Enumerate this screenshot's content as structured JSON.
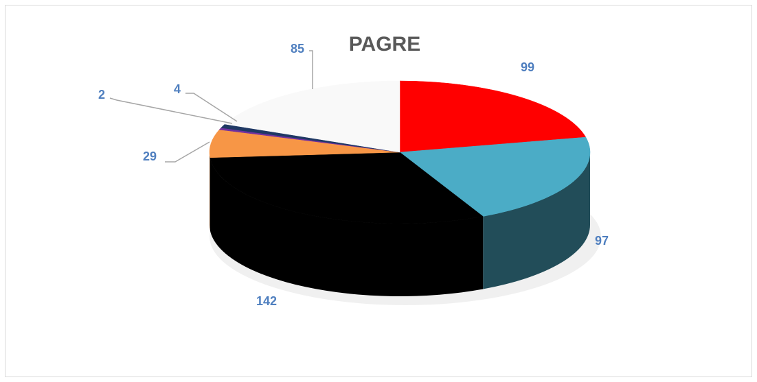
{
  "chart_data": {
    "type": "pie",
    "title": "PAGRE",
    "values": [
      99,
      97,
      142,
      29,
      2,
      4,
      85
    ],
    "colors": [
      "#ff0000",
      "#4bacc6",
      "#000000",
      "#f79646",
      "#7030a0",
      "#1f3864",
      "#f9f9f9"
    ]
  }
}
